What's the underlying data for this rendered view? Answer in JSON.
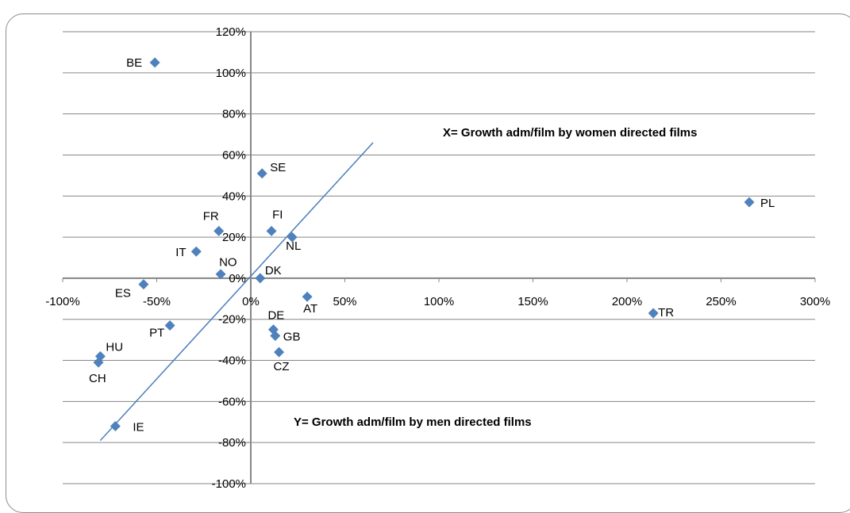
{
  "chart_data": {
    "type": "scatter",
    "xlim": [
      -1.0,
      3.0
    ],
    "ylim": [
      -1.0,
      1.2
    ],
    "x_ticks": [
      -1.0,
      -0.5,
      0,
      0.5,
      1.0,
      1.5,
      2.0,
      2.5,
      3.0
    ],
    "x_tick_labels": [
      "-100%",
      "-50%",
      "0%",
      "50%",
      "100%",
      "150%",
      "200%",
      "250%",
      "300%"
    ],
    "y_ticks": [
      1.2,
      1.0,
      0.8,
      0.6,
      0.4,
      0.2,
      0,
      -0.2,
      -0.4,
      -0.6,
      -0.8,
      -1.0
    ],
    "y_tick_labels": [
      "120%",
      "100%",
      "80%",
      "60%",
      "40%",
      "20%",
      "0%",
      "-20%",
      "-40%",
      "-60%",
      "-80%",
      "-100%"
    ],
    "grid": true,
    "marker_color": "#4f81bd",
    "trendline_color": "#4a7ebb",
    "trendline": {
      "x": [
        -0.8,
        0.65
      ],
      "y": [
        -0.79,
        0.66
      ]
    },
    "points": [
      {
        "label": "BE",
        "x": -0.51,
        "y": 1.05
      },
      {
        "label": "SE",
        "x": 0.06,
        "y": 0.51
      },
      {
        "label": "PL",
        "x": 2.65,
        "y": 0.37
      },
      {
        "label": "FR",
        "x": -0.17,
        "y": 0.23
      },
      {
        "label": "FI",
        "x": 0.11,
        "y": 0.23
      },
      {
        "label": "NL",
        "x": 0.22,
        "y": 0.2
      },
      {
        "label": "IT",
        "x": -0.29,
        "y": 0.13
      },
      {
        "label": "NO",
        "x": -0.16,
        "y": 0.02
      },
      {
        "label": "DK",
        "x": 0.05,
        "y": 0.0
      },
      {
        "label": "ES",
        "x": -0.57,
        "y": -0.03
      },
      {
        "label": "AT",
        "x": 0.3,
        "y": -0.09
      },
      {
        "label": "TR",
        "x": 2.14,
        "y": -0.17
      },
      {
        "label": "PT",
        "x": -0.43,
        "y": -0.23
      },
      {
        "label": "DE",
        "x": 0.12,
        "y": -0.25
      },
      {
        "label": "GB",
        "x": 0.13,
        "y": -0.28
      },
      {
        "label": "CZ",
        "x": 0.15,
        "y": -0.36
      },
      {
        "label": "HU",
        "x": -0.8,
        "y": -0.38
      },
      {
        "label": "CH",
        "x": -0.81,
        "y": -0.41
      },
      {
        "label": "IE",
        "x": -0.72,
        "y": -0.72
      }
    ],
    "annotations": [
      "X= Growth adm/film by women directed films",
      "Y= Growth adm/film by men directed films"
    ]
  }
}
